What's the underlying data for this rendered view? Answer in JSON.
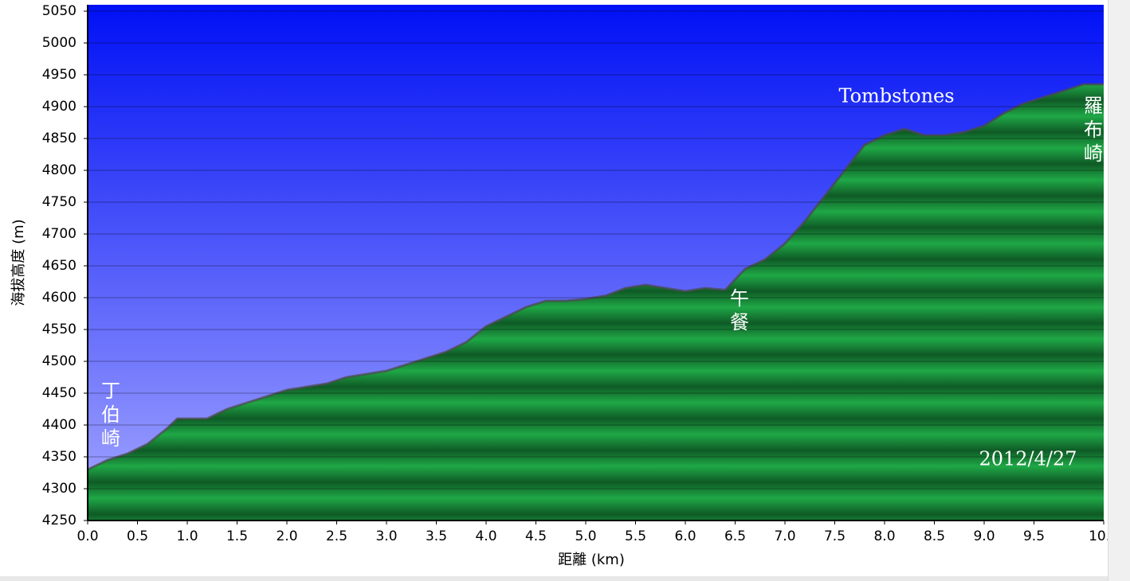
{
  "chart_data": {
    "type": "area",
    "xlabel": "距離 (km)",
    "ylabel": "海拔高度 (m)",
    "x": [
      0.0,
      0.2,
      0.4,
      0.6,
      0.8,
      0.9,
      1.0,
      1.2,
      1.4,
      1.6,
      1.8,
      2.0,
      2.2,
      2.4,
      2.6,
      2.8,
      3.0,
      3.2,
      3.4,
      3.6,
      3.8,
      4.0,
      4.2,
      4.4,
      4.6,
      4.8,
      5.0,
      5.2,
      5.4,
      5.6,
      5.8,
      6.0,
      6.2,
      6.4,
      6.6,
      6.8,
      7.0,
      7.2,
      7.4,
      7.6,
      7.8,
      8.0,
      8.2,
      8.4,
      8.6,
      8.8,
      9.0,
      9.2,
      9.4,
      9.6,
      9.8,
      10.0,
      10.2
    ],
    "values": [
      4330,
      4345,
      4355,
      4370,
      4395,
      4410,
      4410,
      4410,
      4425,
      4435,
      4445,
      4455,
      4460,
      4465,
      4475,
      4480,
      4485,
      4495,
      4505,
      4515,
      4530,
      4555,
      4570,
      4585,
      4595,
      4595,
      4598,
      4603,
      4615,
      4620,
      4615,
      4610,
      4615,
      4612,
      4645,
      4660,
      4685,
      4720,
      4760,
      4800,
      4840,
      4855,
      4865,
      4855,
      4855,
      4860,
      4870,
      4890,
      4905,
      4915,
      4925,
      4935,
      4935
    ],
    "color": "#1fa846",
    "xlim": [
      0,
      10.2
    ],
    "ylim": [
      4250,
      5060
    ],
    "xticks": [
      {
        "value": 0,
        "label": "0.0"
      },
      0.5,
      {
        "value": 1,
        "label": "1.0"
      },
      1.5,
      {
        "value": 2,
        "label": "2.0"
      },
      2.5,
      {
        "value": 3,
        "label": "3.0"
      },
      3.5,
      {
        "value": 4,
        "label": "4.0"
      },
      4.5,
      {
        "value": 5,
        "label": "5.0"
      },
      5.5,
      {
        "value": 6,
        "label": "6.0"
      },
      6.5,
      {
        "value": 7,
        "label": "7.0"
      },
      7.5,
      {
        "value": 8,
        "label": "8.0"
      },
      8.5,
      {
        "value": 9,
        "label": "9.0"
      },
      9.5,
      10.2
    ],
    "yticks": [
      4250,
      4300,
      4350,
      4400,
      4450,
      4500,
      4550,
      4600,
      4650,
      4700,
      4750,
      4800,
      4850,
      4900,
      4950,
      5000,
      5050
    ],
    "grid": true,
    "annotations": [
      "丁伯崎",
      "午餐",
      "Tombstones",
      "羅布崎",
      "2012/4/27"
    ]
  }
}
